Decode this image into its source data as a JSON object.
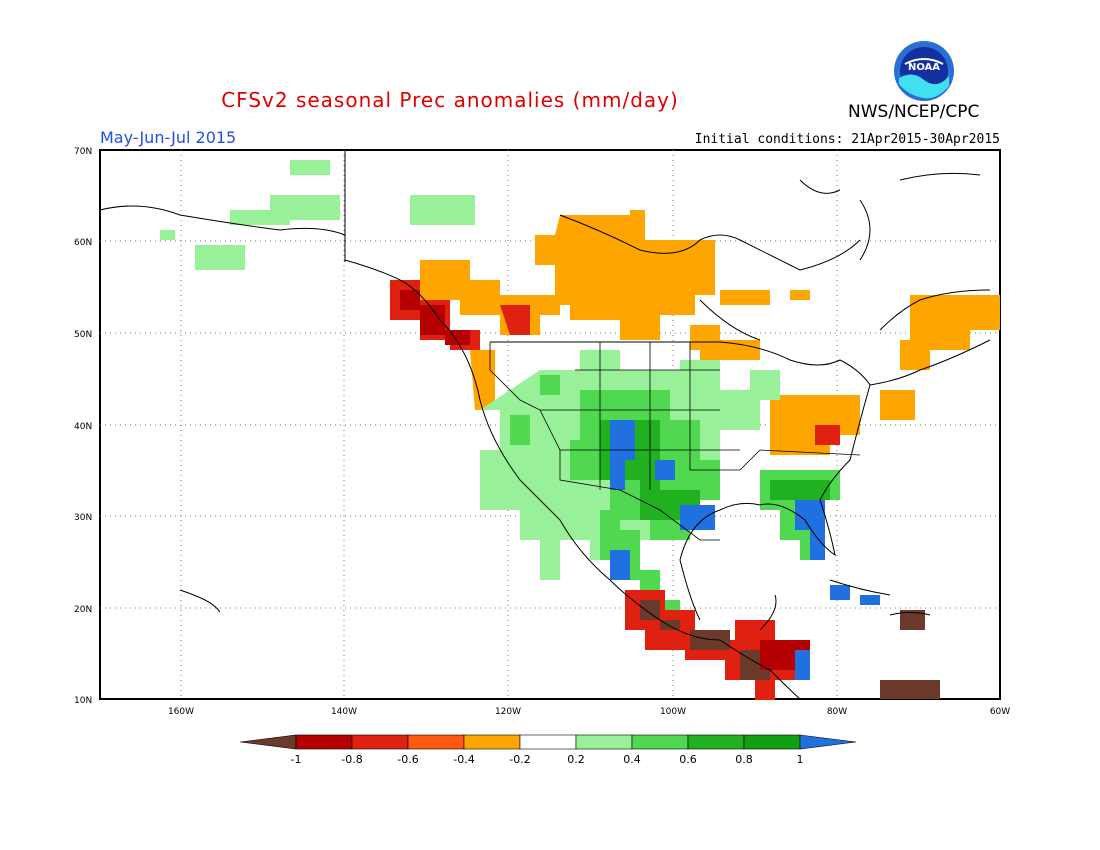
{
  "header": {
    "title": "CFSv2 seasonal Prec anomalies (mm/day)",
    "season": "May-Jun-Jul 2015",
    "initial_conditions": "Initial conditions: 21Apr2015-30Apr2015",
    "agency": "NWS/NCEP/CPC",
    "logo_text": "NOAA"
  },
  "axes": {
    "lat_labels": [
      "70N",
      "60N",
      "50N",
      "40N",
      "30N",
      "20N",
      "10N"
    ],
    "lon_labels": [
      "160W",
      "140W",
      "120W",
      "100W",
      "80W",
      "60W"
    ]
  },
  "colorbar": {
    "labels": [
      "-1",
      "-0.8",
      "-0.6",
      "-0.4",
      "-0.2",
      "0.2",
      "0.4",
      "0.6",
      "0.8",
      "1"
    ],
    "colors": [
      "#6b3a2a",
      "#b40000",
      "#e02010",
      "#ff5a10",
      "#ffa500",
      "#ffffff",
      "#98f098",
      "#50d850",
      "#20b020",
      "#10a010",
      "#2070e0"
    ]
  },
  "regions": [
    {
      "name": "alaska-north",
      "anomaly": 0.2
    },
    {
      "name": "pacific-northwest",
      "anomaly": -0.8
    },
    {
      "name": "canada-prairies",
      "anomaly": -0.4
    },
    {
      "name": "hudson-bay",
      "anomaly": -0.4
    },
    {
      "name": "southern-plains",
      "anomaly": 1.0
    },
    {
      "name": "florida",
      "anomaly": 1.0
    },
    {
      "name": "ohio-valley",
      "anomaly": -0.4
    },
    {
      "name": "southern-mexico",
      "anomaly": -1.0
    },
    {
      "name": "central-america",
      "anomaly": -1.0
    }
  ]
}
